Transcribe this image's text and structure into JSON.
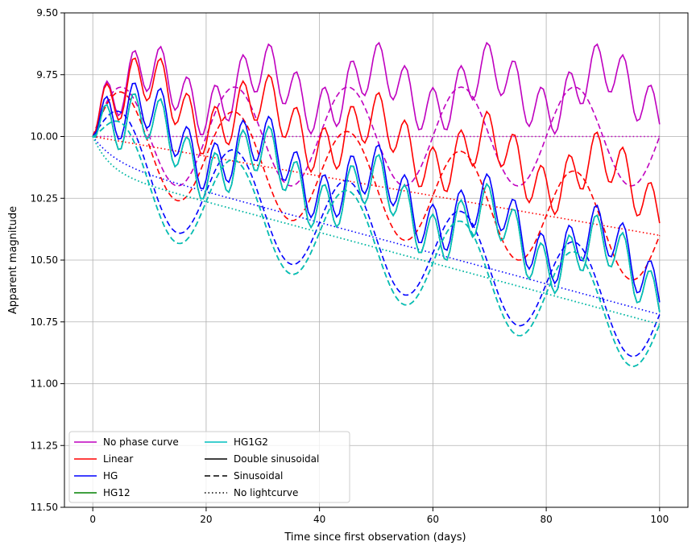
{
  "chart_data": {
    "type": "line",
    "title": "",
    "xlabel": "Time since first observation (days)",
    "ylabel": "Apparent magnitude",
    "xlim": [
      -5,
      105
    ],
    "ylim": [
      11.5,
      9.5
    ],
    "y_inverted": true,
    "grid": true,
    "legend_placement": "lower-left",
    "xticks": [
      0,
      20,
      40,
      60,
      80,
      100
    ],
    "xtick_labels": [
      "0",
      "20",
      "40",
      "60",
      "80",
      "100"
    ],
    "yticks": [
      9.5,
      9.75,
      10.0,
      10.25,
      10.5,
      10.75,
      11.0,
      11.25,
      11.5
    ],
    "ytick_labels": [
      "9.50",
      "9.75",
      "10.00",
      "10.25",
      "10.50",
      "10.75",
      "11.00",
      "11.25",
      "11.50"
    ],
    "x_sample_step": 0.5,
    "x_range": [
      0,
      100
    ],
    "legend": {
      "col1": [
        "No phase curve",
        "Linear",
        "HG",
        "HG12"
      ],
      "col2": [
        "HG1G2",
        "Double sinusoidal",
        "Sinusoidal",
        "No lightcurve"
      ]
    },
    "series": [
      {
        "name": "No phase curve",
        "line_style": "Double sinusoidal",
        "color": "#bf00bf",
        "y": []
      },
      {
        "name": "No phase curve",
        "line_style": "Sinusoidal",
        "color": "#bf00bf",
        "y": []
      },
      {
        "name": "No phase curve",
        "line_style": "No lightcurve",
        "color": "#bf00bf",
        "y": []
      },
      {
        "name": "Linear",
        "line_style": "Double sinusoidal",
        "color": "#ff0000",
        "y": []
      },
      {
        "name": "Linear",
        "line_style": "Sinusoidal",
        "color": "#ff0000",
        "y": []
      },
      {
        "name": "Linear",
        "line_style": "No lightcurve",
        "color": "#ff0000",
        "y": []
      },
      {
        "name": "HG",
        "line_style": "Double sinusoidal",
        "color": "#0000ff",
        "y": []
      },
      {
        "name": "HG",
        "line_style": "Sinusoidal",
        "color": "#0000ff",
        "y": []
      },
      {
        "name": "HG",
        "line_style": "No lightcurve",
        "color": "#0000ff",
        "y": []
      },
      {
        "name": "HG12",
        "line_style": "Double sinusoidal",
        "color": "#008000",
        "y": []
      },
      {
        "name": "HG12",
        "line_style": "Sinusoidal",
        "color": "#008000",
        "y": []
      },
      {
        "name": "HG12",
        "line_style": "No lightcurve",
        "color": "#008000",
        "y": []
      },
      {
        "name": "HG1G2",
        "line_style": "Double sinusoidal",
        "color": "#00bfbf",
        "y": []
      },
      {
        "name": "HG1G2",
        "line_style": "Sinusoidal",
        "color": "#00bfbf",
        "y": []
      },
      {
        "name": "HG1G2",
        "line_style": "No lightcurve",
        "color": "#00bfbf",
        "y": []
      }
    ]
  }
}
